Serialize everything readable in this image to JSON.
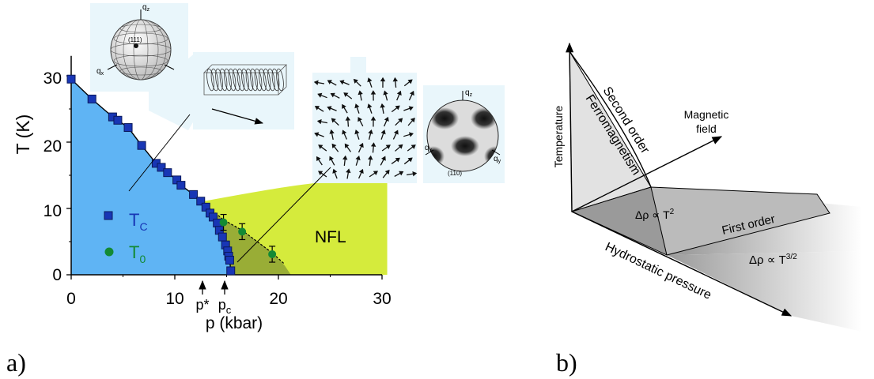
{
  "panel_labels": {
    "a": "a)",
    "b": "b)"
  },
  "chart_data": [
    {
      "type": "scatter",
      "xlabel": "p (kbar)",
      "ylabel": "T (K)",
      "xlim": [
        0,
        30
      ],
      "ylim": [
        0,
        30
      ],
      "x_ticks": [
        "0",
        "10",
        "20",
        "30"
      ],
      "y_ticks": [
        "0",
        "10",
        "20",
        "30"
      ],
      "series": [
        {
          "name": "T_C",
          "marker": "square",
          "color": "#1836b5",
          "points": [
            [
              0,
              29.5
            ],
            [
              2,
              26.5
            ],
            [
              4,
              23.8
            ],
            [
              4.5,
              23.3
            ],
            [
              5.5,
              22.2
            ],
            [
              6.8,
              19.5
            ],
            [
              8.2,
              16.8
            ],
            [
              8.7,
              16.2
            ],
            [
              9.3,
              15.4
            ],
            [
              10.2,
              14.3
            ],
            [
              10.6,
              13.5
            ],
            [
              11.8,
              12.1
            ],
            [
              12.5,
              11.1
            ],
            [
              13,
              10.2
            ],
            [
              13.4,
              9.3
            ],
            [
              13.7,
              8.7
            ],
            [
              14.1,
              7.8
            ],
            [
              14.3,
              6.7
            ],
            [
              14.6,
              5.7
            ],
            [
              14.9,
              4.5
            ],
            [
              15.1,
              3.6
            ],
            [
              15.2,
              2.8
            ],
            [
              15.3,
              2.2
            ],
            [
              15.4,
              0.6
            ]
          ]
        },
        {
          "name": "T_0",
          "marker": "circle",
          "color": "#138a34",
          "points": [
            [
              14.7,
              7.9
            ],
            [
              16.5,
              6.5
            ],
            [
              19.4,
              3.1
            ]
          ],
          "errors": [
            1.2,
            1.2,
            1.2
          ]
        }
      ],
      "legend": [
        {
          "main": "T",
          "sub": "C",
          "color": "#1836b5"
        },
        {
          "main": "T",
          "sub": "0",
          "color": "#138a34"
        }
      ],
      "region_labels": {
        "nfl": "NFL"
      },
      "pressure_markers": [
        {
          "main": "p*",
          "x": 12.7
        },
        {
          "main": "p",
          "sub": "c",
          "x": 14.8
        }
      ],
      "inset_labels": {
        "sphere1": {
          "qz": "q",
          "qz_sub": "z",
          "qx": "q",
          "qx_sub": "x",
          "qy": "q",
          "qy_sub": "y",
          "dir": "(111)"
        },
        "sphere2": {
          "qz": "q",
          "qz_sub": "z",
          "qx": "q",
          "qx_sub": "x",
          "qy": "q",
          "qy_sub": "y",
          "dir": "(110)"
        }
      },
      "colors": {
        "ordered": "#5fb4f4",
        "partial": "#99ad36",
        "nfl": "#d5eb3c"
      }
    },
    {
      "type": "diagram",
      "axes": {
        "vertical": "Temperature",
        "magnetic": "Magnetic field",
        "pressure": "Hydrostatic pressure"
      },
      "labels": {
        "second_order": "Second order",
        "ferromagnetism": "Ferromagnetism",
        "first_order": "First order",
        "res1": "Δρ ∝ T²",
        "res1_plain": "Δρ ∝ T",
        "res1_exp": "2",
        "res2_plain": "Δρ ∝ T",
        "res2_exp": "3/2"
      }
    }
  ]
}
